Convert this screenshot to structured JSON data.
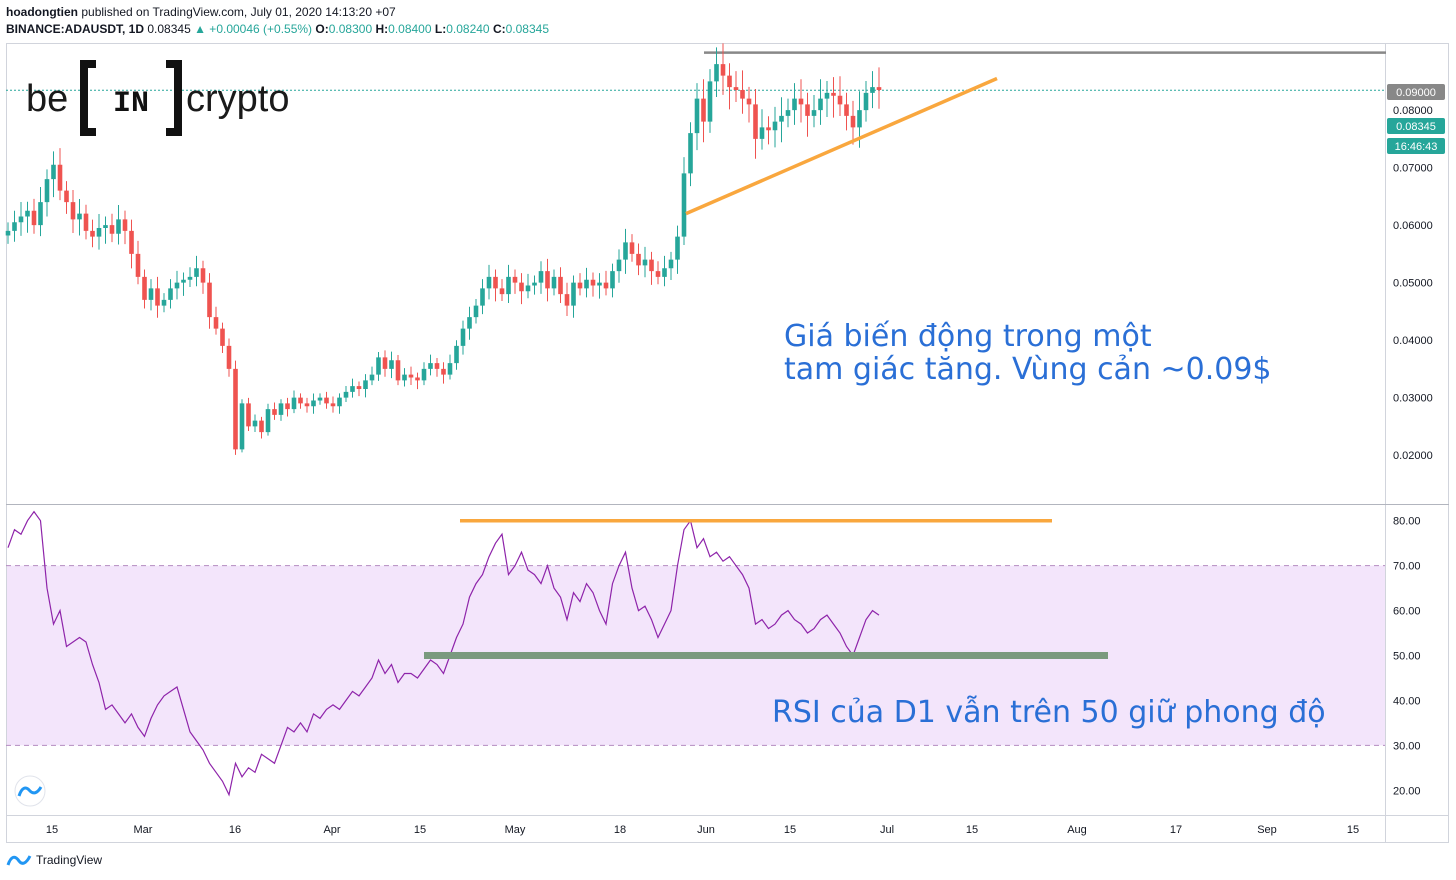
{
  "header": {
    "author": "hoadongtien",
    "published": "published on TradingView.com, July 01, 2020 14:13:20 +07",
    "symbol": "BINANCE:ADAUSDT, 1D",
    "last": "0.08345",
    "change": "▲ +0.00046 (+0.55%)",
    "o_label": "O:",
    "o": "0.08300",
    "h_label": "H:",
    "h": "0.08400",
    "l_label": "L:",
    "l": "0.08240",
    "c_label": "C:",
    "c": "0.08345"
  },
  "logo": {
    "text_left": "be",
    "text_mid": "IN",
    "text_right": "crypto"
  },
  "annotations": {
    "price_line1": "Giá biến động trong một",
    "price_line2": "tam giác tăng. Vùng cản ~0.09$",
    "rsi_text": "RSI của D1 vẫn trên 50 giữ phong độ"
  },
  "price_badges": {
    "resistance": "0.09000",
    "last": "0.08345",
    "countdown": "16:46:43"
  },
  "footer": {
    "brand": "TradingView"
  },
  "colors": {
    "up": "#26a69a",
    "down": "#ef5350",
    "rsi": "#8e24aa",
    "band": "#f3e5fb",
    "orange": "#f9a73e",
    "green_line": "#7a9a7e",
    "text_blue": "#2962ff",
    "resistance": "#888888"
  },
  "chart_data": [
    {
      "type": "candlestick",
      "pair": "ADAUSDT",
      "timeframe": "1D",
      "x_tick_labels": [
        "15",
        "Mar",
        "16",
        "Apr",
        "15",
        "May",
        "18",
        "Jun",
        "15",
        "Jul",
        "15",
        "Aug",
        "17",
        "Sep",
        "15"
      ],
      "y_ticks": [
        "0.02000",
        "0.03000",
        "0.04000",
        "0.05000",
        "0.06000",
        "0.07000",
        "0.08000"
      ],
      "ylim": [
        0.0115,
        0.0915
      ],
      "resistance": 0.09,
      "last_price": 0.08345,
      "trendline": {
        "from": [
          "May 29",
          0.062
        ],
        "to": [
          "Jul 18",
          0.0855
        ]
      },
      "closes": [
        0.059,
        0.0605,
        0.0615,
        0.0625,
        0.06,
        0.064,
        0.068,
        0.0705,
        0.066,
        0.064,
        0.061,
        0.062,
        0.059,
        0.058,
        0.0595,
        0.06,
        0.0585,
        0.061,
        0.059,
        0.055,
        0.051,
        0.047,
        0.049,
        0.046,
        0.047,
        0.049,
        0.05,
        0.0505,
        0.051,
        0.0525,
        0.05,
        0.044,
        0.042,
        0.039,
        0.035,
        0.021,
        0.029,
        0.025,
        0.026,
        0.024,
        0.028,
        0.027,
        0.029,
        0.028,
        0.03,
        0.029,
        0.0285,
        0.0295,
        0.03,
        0.029,
        0.0285,
        0.03,
        0.031,
        0.032,
        0.0315,
        0.033,
        0.034,
        0.037,
        0.035,
        0.0365,
        0.033,
        0.034,
        0.0335,
        0.033,
        0.035,
        0.036,
        0.035,
        0.034,
        0.036,
        0.039,
        0.042,
        0.044,
        0.046,
        0.049,
        0.051,
        0.049,
        0.048,
        0.051,
        0.05,
        0.0485,
        0.0495,
        0.05,
        0.052,
        0.049,
        0.051,
        0.048,
        0.046,
        0.05,
        0.049,
        0.0505,
        0.0495,
        0.05,
        0.049,
        0.052,
        0.054,
        0.057,
        0.055,
        0.053,
        0.054,
        0.052,
        0.051,
        0.0525,
        0.054,
        0.058,
        0.069,
        0.076,
        0.082,
        0.078,
        0.085,
        0.088,
        0.086,
        0.084,
        0.0835,
        0.082,
        0.081,
        0.075,
        0.077,
        0.0765,
        0.078,
        0.079,
        0.08,
        0.082,
        0.081,
        0.079,
        0.08,
        0.082,
        0.083,
        0.0825,
        0.081,
        0.079,
        0.077,
        0.08,
        0.083,
        0.084,
        0.0835
      ]
    },
    {
      "type": "line",
      "series": [
        {
          "name": "RSI",
          "values": [
            74,
            78,
            77,
            80,
            82,
            80,
            65,
            57,
            60,
            52,
            53,
            54,
            53,
            48,
            44,
            38,
            39,
            37,
            35,
            37,
            34,
            32,
            36,
            39,
            41,
            42,
            43,
            38,
            33,
            31,
            29,
            26,
            24,
            22,
            19,
            26,
            23,
            25,
            24,
            28,
            27,
            26,
            30,
            34,
            33,
            35,
            33,
            37,
            36,
            38,
            39,
            38,
            40,
            42,
            41,
            43,
            45,
            49,
            46,
            48,
            44,
            46,
            46,
            45,
            47,
            49,
            48,
            46,
            50,
            54,
            57,
            63,
            66,
            68,
            72,
            75,
            77,
            68,
            70,
            73,
            69,
            68,
            66,
            70,
            65,
            63,
            58,
            64,
            62,
            66,
            64,
            60,
            57,
            66,
            70,
            73,
            65,
            60,
            61,
            58,
            54,
            57,
            60,
            70,
            78,
            80,
            74,
            76,
            72,
            73,
            71,
            72,
            70,
            68,
            65,
            57,
            58,
            56,
            57,
            59,
            60,
            58,
            57,
            55,
            56,
            58,
            59,
            57,
            55,
            52,
            50,
            54,
            58,
            60,
            59
          ]
        }
      ],
      "y_ticks": [
        "20.00",
        "30.00",
        "40.00",
        "50.00",
        "60.00",
        "70.00",
        "80.00"
      ],
      "ylim": [
        14.5,
        83.5
      ],
      "band": [
        30,
        70
      ],
      "levels": {
        "orange": 80,
        "green": 50
      }
    }
  ]
}
